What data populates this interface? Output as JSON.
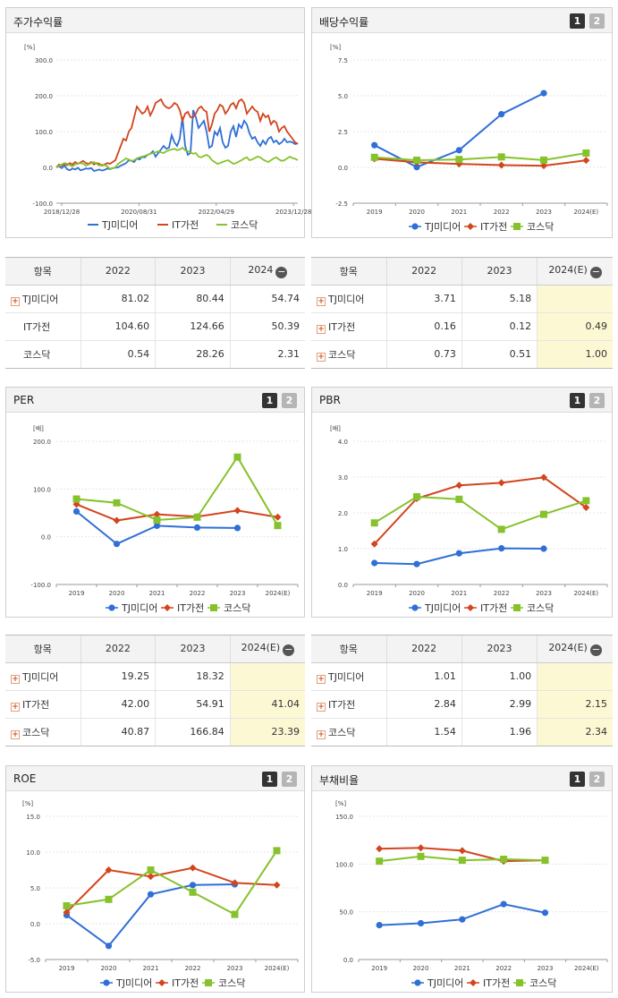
{
  "colors": {
    "TJ": "#2f6fd6",
    "IT": "#d2451e",
    "KQ": "#86c22b"
  },
  "legend": [
    "TJ미디어",
    "IT가전",
    "코스닥"
  ],
  "panels": {
    "stock": {
      "title": "주가수익률"
    },
    "dividend": {
      "title": "배당수익률"
    },
    "per": {
      "title": "PER"
    },
    "pbr": {
      "title": "PBR"
    },
    "roe": {
      "title": "ROE"
    },
    "debt": {
      "title": "부채비율"
    }
  },
  "toggle": {
    "one": "1",
    "two": "2"
  },
  "tables": {
    "stock": {
      "head": [
        "항목",
        "2022",
        "2023",
        "2024"
      ],
      "rows": [
        {
          "name": "TJ미디어",
          "plus": true,
          "v": [
            "81.02",
            "80.44",
            "54.74"
          ]
        },
        {
          "name": "IT가전",
          "plus": false,
          "v": [
            "104.60",
            "124.66",
            "50.39"
          ]
        },
        {
          "name": "코스닥",
          "plus": false,
          "v": [
            "0.54",
            "28.26",
            "2.31"
          ]
        }
      ]
    },
    "dividend": {
      "head": [
        "항목",
        "2022",
        "2023",
        "2024(E)"
      ],
      "rows": [
        {
          "name": "TJ미디어",
          "plus": true,
          "v": [
            "3.71",
            "5.18",
            ""
          ]
        },
        {
          "name": "IT가전",
          "plus": true,
          "v": [
            "0.16",
            "0.12",
            "0.49"
          ]
        },
        {
          "name": "코스닥",
          "plus": true,
          "v": [
            "0.73",
            "0.51",
            "1.00"
          ]
        }
      ]
    },
    "per": {
      "head": [
        "항목",
        "2022",
        "2023",
        "2024(E)"
      ],
      "rows": [
        {
          "name": "TJ미디어",
          "plus": true,
          "v": [
            "19.25",
            "18.32",
            ""
          ]
        },
        {
          "name": "IT가전",
          "plus": true,
          "v": [
            "42.00",
            "54.91",
            "41.04"
          ]
        },
        {
          "name": "코스닥",
          "plus": true,
          "v": [
            "40.87",
            "166.84",
            "23.39"
          ]
        }
      ]
    },
    "pbr": {
      "head": [
        "항목",
        "2022",
        "2023",
        "2024(E)"
      ],
      "rows": [
        {
          "name": "TJ미디어",
          "plus": true,
          "v": [
            "1.01",
            "1.00",
            ""
          ]
        },
        {
          "name": "IT가전",
          "plus": true,
          "v": [
            "2.84",
            "2.99",
            "2.15"
          ]
        },
        {
          "name": "코스닥",
          "plus": true,
          "v": [
            "1.54",
            "1.96",
            "2.34"
          ]
        }
      ]
    }
  },
  "chart_data": [
    {
      "type": "line",
      "id": "stock",
      "unit": "[%]",
      "yticks": [
        "300.0",
        "200.0",
        "100.0",
        "0.0",
        "-100.0"
      ],
      "ylim": [
        -100,
        300
      ],
      "xticks": [
        "2018/12/28",
        "2020/08/31",
        "2022/04/29",
        "2023/12/28"
      ],
      "series": [
        {
          "name": "TJ미디어",
          "values": [
            0,
            3,
            -2,
            5,
            -5,
            -8,
            -3,
            -6,
            -1,
            -8,
            -6,
            -3,
            -4,
            -2,
            -10,
            -8,
            -6,
            -9,
            -7,
            -3,
            -5,
            -2,
            -1,
            0,
            5,
            8,
            12,
            20,
            18,
            15,
            25,
            22,
            30,
            28,
            35,
            38,
            45,
            30,
            40,
            50,
            60,
            52,
            55,
            90,
            70,
            60,
            80,
            140,
            60,
            35,
            40,
            160,
            140,
            110,
            120,
            130,
            100,
            55,
            60,
            100,
            90,
            110,
            70,
            55,
            60,
            100,
            115,
            85,
            120,
            110,
            130,
            120,
            95,
            80,
            85,
            70,
            60,
            75,
            65,
            80,
            85,
            70,
            75,
            65,
            70,
            80,
            70,
            72,
            70,
            65,
            68
          ]
        },
        {
          "name": "IT가전",
          "values": [
            0,
            8,
            5,
            10,
            6,
            12,
            8,
            15,
            10,
            14,
            18,
            12,
            10,
            15,
            8,
            12,
            10,
            5,
            8,
            12,
            10,
            15,
            20,
            40,
            60,
            80,
            75,
            100,
            110,
            140,
            170,
            160,
            150,
            155,
            170,
            145,
            160,
            180,
            185,
            190,
            175,
            168,
            165,
            170,
            180,
            175,
            160,
            130,
            150,
            155,
            140,
            140,
            150,
            165,
            170,
            160,
            155,
            100,
            120,
            150,
            160,
            175,
            170,
            150,
            160,
            175,
            180,
            165,
            185,
            190,
            180,
            150,
            160,
            170,
            160,
            155,
            130,
            150,
            140,
            145,
            120,
            130,
            125,
            100,
            110,
            115,
            100,
            90,
            80,
            70,
            65
          ]
        },
        {
          "name": "코스닥",
          "values": [
            0,
            5,
            8,
            12,
            10,
            6,
            3,
            8,
            10,
            12,
            10,
            5,
            8,
            12,
            15,
            10,
            5,
            8,
            6,
            3,
            -5,
            -2,
            0,
            10,
            15,
            20,
            25,
            22,
            18,
            20,
            25,
            28,
            30,
            32,
            35,
            38,
            40,
            42,
            45,
            42,
            40,
            45,
            48,
            50,
            52,
            48,
            50,
            55,
            48,
            45,
            42,
            38,
            40,
            30,
            28,
            32,
            35,
            30,
            20,
            15,
            10,
            12,
            15,
            18,
            20,
            15,
            10,
            12,
            16,
            20,
            25,
            28,
            20,
            22,
            26,
            30,
            28,
            22,
            18,
            15,
            20,
            25,
            28,
            22,
            18,
            20,
            25,
            30,
            26,
            24,
            20
          ]
        }
      ]
    },
    {
      "type": "line",
      "id": "dividend",
      "unit": "[%]",
      "categories": [
        "2019",
        "2020",
        "2021",
        "2022",
        "2023",
        "2024(E)"
      ],
      "yticks": [
        "7.5",
        "5.0",
        "2.5",
        "0.0",
        "-2.5"
      ],
      "ylim": [
        -2.5,
        7.5
      ],
      "series": [
        {
          "name": "TJ미디어",
          "values": [
            1.55,
            0.02,
            1.2,
            3.71,
            5.18,
            null
          ]
        },
        {
          "name": "IT가전",
          "values": [
            0.6,
            0.35,
            0.24,
            0.16,
            0.12,
            0.49
          ]
        },
        {
          "name": "코스닥",
          "values": [
            0.7,
            0.5,
            0.55,
            0.73,
            0.51,
            1.0
          ]
        }
      ]
    },
    {
      "type": "line",
      "id": "per",
      "unit": "[배]",
      "categories": [
        "2019",
        "2020",
        "2021",
        "2022",
        "2023",
        "2024(E)"
      ],
      "yticks": [
        "200.0",
        "100.0",
        "0.0",
        "-100.0"
      ],
      "ylim": [
        -100,
        200
      ],
      "series": [
        {
          "name": "TJ미디어",
          "values": [
            53,
            -15,
            23,
            19.25,
            18.32,
            null
          ]
        },
        {
          "name": "IT가전",
          "values": [
            68,
            34,
            47,
            42.0,
            54.91,
            41.04
          ]
        },
        {
          "name": "코스닥",
          "values": [
            79,
            71,
            35,
            40.87,
            166.84,
            23.39
          ]
        }
      ]
    },
    {
      "type": "line",
      "id": "pbr",
      "unit": "[배]",
      "categories": [
        "2019",
        "2020",
        "2021",
        "2022",
        "2023",
        "2024(E)"
      ],
      "yticks": [
        "4.0",
        "3.0",
        "2.0",
        "1.0",
        "0.0"
      ],
      "ylim": [
        0,
        4
      ],
      "series": [
        {
          "name": "TJ미디어",
          "values": [
            0.6,
            0.57,
            0.87,
            1.01,
            1.0,
            null
          ]
        },
        {
          "name": "IT가전",
          "values": [
            1.13,
            2.4,
            2.77,
            2.84,
            2.99,
            2.15
          ]
        },
        {
          "name": "코스닥",
          "values": [
            1.72,
            2.45,
            2.38,
            1.54,
            1.96,
            2.34
          ]
        }
      ]
    },
    {
      "type": "line",
      "id": "roe",
      "unit": "[%]",
      "categories": [
        "2019",
        "2020",
        "2021",
        "2022",
        "2023",
        "2024(E)"
      ],
      "yticks": [
        "15.0",
        "10.0",
        "5.0",
        "0.0",
        "-5.0"
      ],
      "ylim": [
        -5,
        15
      ],
      "series": [
        {
          "name": "TJ미디어",
          "values": [
            1.2,
            -3.1,
            4.1,
            5.4,
            5.5,
            null
          ]
        },
        {
          "name": "IT가전",
          "values": [
            1.6,
            7.5,
            6.6,
            7.8,
            5.7,
            5.4
          ]
        },
        {
          "name": "코스닥",
          "values": [
            2.5,
            3.4,
            7.5,
            4.4,
            1.3,
            10.2
          ]
        }
      ]
    },
    {
      "type": "line",
      "id": "debt",
      "unit": "[%]",
      "categories": [
        "2019",
        "2020",
        "2021",
        "2022",
        "2023",
        "2024(E)"
      ],
      "yticks": [
        "150.0",
        "100.0",
        "50.0",
        "0.0"
      ],
      "ylim": [
        0,
        150
      ],
      "series": [
        {
          "name": "TJ미디어",
          "values": [
            36,
            38,
            42,
            58,
            49,
            null
          ]
        },
        {
          "name": "IT가전",
          "values": [
            116,
            117,
            114,
            103,
            104,
            null
          ]
        },
        {
          "name": "코스닥",
          "values": [
            103,
            108,
            104,
            105,
            104,
            null
          ]
        }
      ]
    }
  ]
}
